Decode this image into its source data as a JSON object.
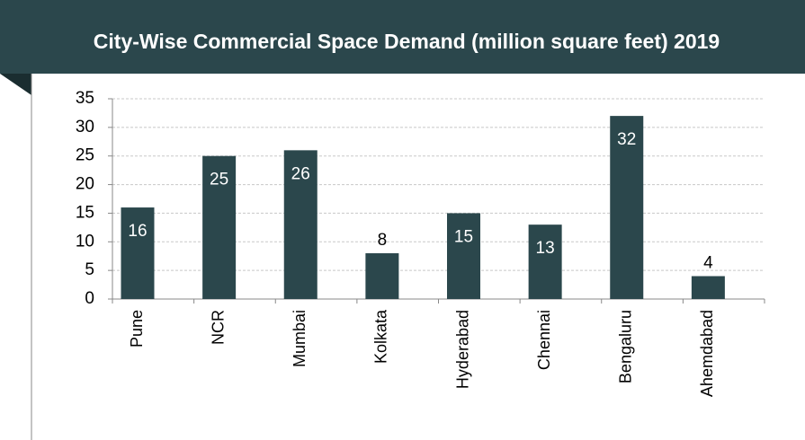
{
  "chart_data": {
    "type": "bar",
    "title": "City-Wise Commercial Space Demand (million square feet) 2019",
    "categories": [
      "Pune",
      "NCR",
      "Mumbai",
      "Kolkata",
      "Hyderabad",
      "Chennai",
      "Bengaluru",
      "Ahemdabad"
    ],
    "values": [
      16,
      25,
      26,
      8,
      15,
      13,
      32,
      4
    ],
    "color": "#2b474c",
    "ylim": [
      0,
      35
    ],
    "yticks": [
      0,
      5,
      10,
      15,
      20,
      25,
      30,
      35
    ],
    "grid": true
  }
}
